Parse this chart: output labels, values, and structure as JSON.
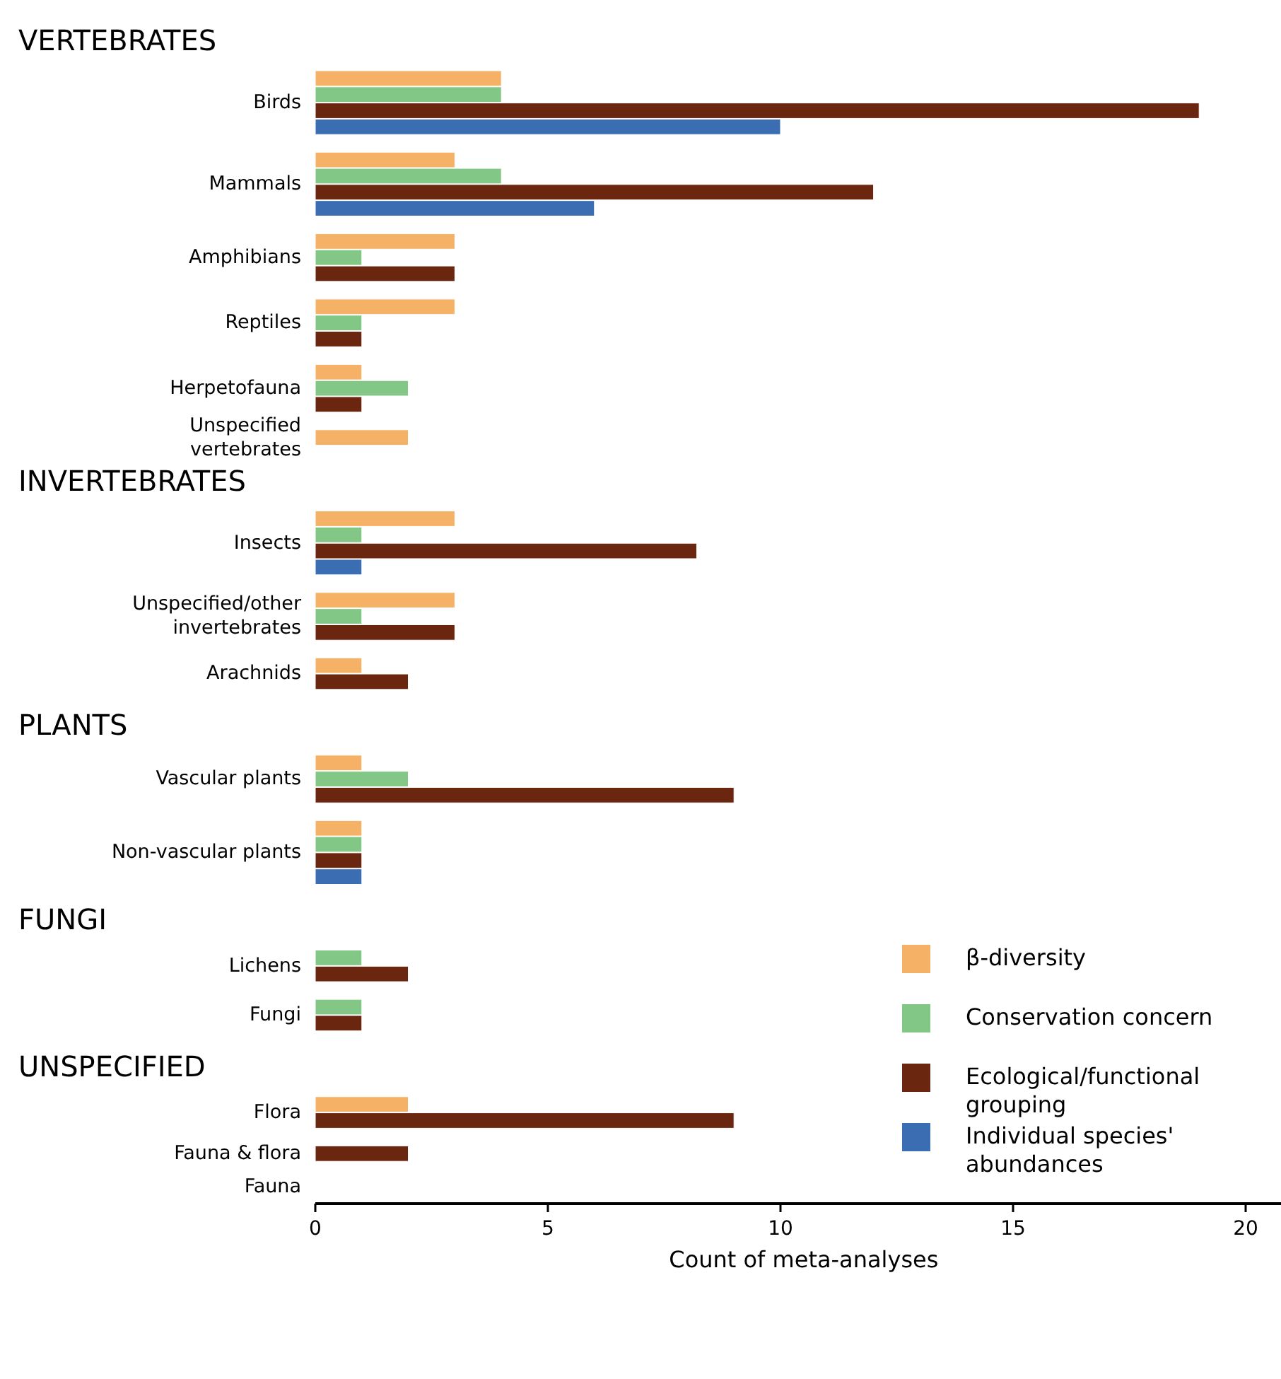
{
  "chart_data": {
    "type": "bar",
    "orientation": "horizontal",
    "xlabel": "Count of meta-analyses",
    "categories": [
      null,
      "Birds",
      "Mammals",
      "Amphibians",
      "Reptiles",
      "Herpetofauna",
      "Unspecified vertebrates",
      null,
      "Insects",
      "Unspecified/other invertebrates",
      "Arachnids",
      null,
      "Vascular plants",
      "Non-vascular plants",
      null,
      "Lichens",
      "Fungi",
      null,
      "Flora",
      "Fauna & flora",
      "Fauna"
    ],
    "series": [
      {
        "name": "β-diversity",
        "color": "#f5b266",
        "values": [
          null,
          4,
          3,
          3,
          3,
          1,
          2,
          null,
          3,
          3,
          1,
          null,
          1,
          1,
          null,
          null,
          null,
          null,
          2,
          null,
          null
        ]
      },
      {
        "name": "Conservation concern",
        "color": "#82c785",
        "values": [
          null,
          4,
          4,
          1,
          1,
          2,
          null,
          null,
          1,
          1,
          null,
          null,
          2,
          1,
          null,
          1,
          1,
          null,
          null,
          null,
          null
        ]
      },
      {
        "name": "Ecological/functional grouping",
        "color": "#6b260f",
        "values": [
          null,
          19,
          12,
          3,
          1,
          1,
          null,
          null,
          8.2,
          3,
          2,
          null,
          9,
          1,
          null,
          2,
          1,
          null,
          9,
          2,
          null
        ]
      },
      {
        "name": "Individual species' abundances",
        "color": "#3b6db3",
        "values": [
          null,
          10,
          6,
          null,
          null,
          null,
          null,
          null,
          1,
          null,
          null,
          null,
          null,
          1,
          null,
          null,
          null,
          null,
          null,
          null,
          null
        ]
      }
    ],
    "annotations": [
      "VERTEBRATES",
      "INVERTEBRATES",
      "PLANTS",
      "FUNGI",
      "UNSPECIFIED"
    ],
    "xlim": [
      0,
      21
    ],
    "xticks": [
      0,
      5,
      10,
      15,
      20
    ],
    "grid": false,
    "legend": "right"
  }
}
